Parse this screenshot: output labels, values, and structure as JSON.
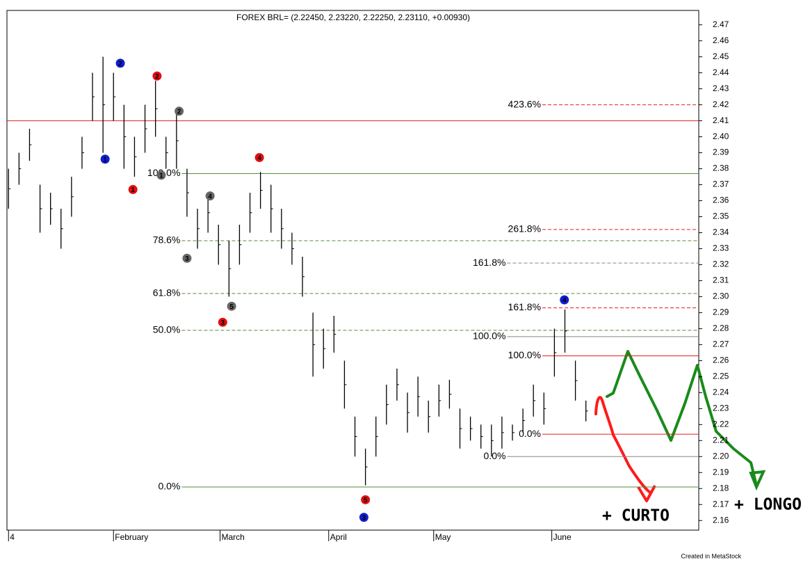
{
  "chart_data": {
    "type": "ohlc",
    "title": "FOREX BRL= (2.22450, 2.23220, 2.22250, 2.23110, +0.00930)",
    "footer": "Created in MetaStock",
    "x": [
      0,
      2,
      4,
      6,
      8,
      10,
      12,
      14,
      16,
      18,
      20,
      22,
      24,
      26,
      28,
      30,
      32,
      34,
      36,
      38,
      40,
      42,
      44,
      46,
      48,
      50,
      52,
      54,
      56,
      58,
      60,
      62,
      64,
      66,
      68,
      70,
      72,
      74,
      76,
      78,
      80,
      82,
      84,
      86,
      88,
      90,
      92,
      94,
      96,
      98,
      100,
      102,
      104,
      106,
      108,
      110
    ],
    "high": [
      2.38,
      2.39,
      2.405,
      2.37,
      2.365,
      2.355,
      2.375,
      2.4,
      2.44,
      2.45,
      2.44,
      2.42,
      2.4,
      2.42,
      2.435,
      2.4,
      2.415,
      2.38,
      2.355,
      2.365,
      2.345,
      2.335,
      2.345,
      2.365,
      2.378,
      2.37,
      2.355,
      2.34,
      2.325,
      2.29,
      2.28,
      2.288,
      2.26,
      2.225,
      2.205,
      2.225,
      2.245,
      2.255,
      2.24,
      2.25,
      2.235,
      2.245,
      2.248,
      2.23,
      2.225,
      2.22,
      2.22,
      2.225,
      2.22,
      2.23,
      2.245,
      2.24,
      2.28,
      2.292,
      2.26,
      2.235
    ],
    "low": [
      2.355,
      2.37,
      2.385,
      2.34,
      2.345,
      2.33,
      2.35,
      2.38,
      2.41,
      2.39,
      2.41,
      2.38,
      2.375,
      2.39,
      2.4,
      2.38,
      2.38,
      2.35,
      2.33,
      2.34,
      2.32,
      2.3,
      2.32,
      2.34,
      2.355,
      2.34,
      2.33,
      2.32,
      2.3,
      2.25,
      2.255,
      2.265,
      2.23,
      2.2,
      2.182,
      2.2,
      2.22,
      2.235,
      2.215,
      2.225,
      2.215,
      2.225,
      2.23,
      2.205,
      2.21,
      2.205,
      2.2,
      2.205,
      2.21,
      2.215,
      2.225,
      2.22,
      2.25,
      2.265,
      2.235,
      2.222
    ],
    "xlim": [
      -0.3,
      131.5
    ],
    "xticks": [
      {
        "value": 0,
        "label": "4"
      },
      {
        "value": 20,
        "label": "February"
      },
      {
        "value": 40.3,
        "label": "March"
      },
      {
        "value": 61,
        "label": "April"
      },
      {
        "value": 81,
        "label": "May"
      },
      {
        "value": 103.5,
        "label": "June"
      }
    ],
    "ylim": [
      2.154,
      2.479
    ],
    "yticks": [
      2.16,
      2.17,
      2.18,
      2.19,
      {
        "value": 2.2,
        "label": "2.20"
      },
      2.21,
      2.22,
      2.23,
      2.24,
      2.25,
      2.26,
      2.27,
      2.28,
      2.29,
      {
        "value": 2.3,
        "label": "2.30"
      },
      2.31,
      2.32,
      2.33,
      2.34,
      2.35,
      2.36,
      2.37,
      2.38,
      2.39,
      {
        "value": 2.4,
        "label": "2.40"
      },
      2.41,
      2.42,
      2.43,
      2.44,
      2.45,
      2.46,
      2.47
    ],
    "levels": [
      {
        "price": 2.41,
        "color": "#e02020",
        "dashed": false,
        "from": -0.3
      },
      {
        "label": "423.6%",
        "price": 2.42,
        "color": "#e02020",
        "dashed": true,
        "from": 101.7
      },
      {
        "label": "261.8%",
        "price": 2.342,
        "color": "#e02020",
        "dashed": true,
        "from": 101.7
      },
      {
        "label": "161.8%",
        "price": 2.293,
        "color": "#e02020",
        "dashed": true,
        "from": 101.7
      },
      {
        "label": "100.0%",
        "price": 2.263,
        "color": "#e02020",
        "dashed": false,
        "from": 101.7
      },
      {
        "label": "0.0%",
        "price": 2.214,
        "color": "#e02020",
        "dashed": false,
        "from": 101.7
      },
      {
        "label": "161.8%",
        "price": 2.321,
        "color": "#888888",
        "dashed": true,
        "from": 95
      },
      {
        "label": "100.0%",
        "price": 2.275,
        "color": "#888888",
        "dashed": false,
        "from": 95
      },
      {
        "label": "0.0%",
        "price": 2.2,
        "color": "#888888",
        "dashed": false,
        "from": 95
      },
      {
        "label": "100.0%",
        "price": 2.377,
        "color": "#5a8a3a",
        "dashed": false,
        "from": 33
      },
      {
        "label": "78.6%",
        "price": 2.335,
        "color": "#5a8a3a",
        "dashed": true,
        "from": 33
      },
      {
        "label": "61.8%",
        "price": 2.302,
        "color": "#5a8a3a",
        "dashed": true,
        "from": 33
      },
      {
        "label": "50.0%",
        "price": 2.279,
        "color": "#5a8a3a",
        "dashed": true,
        "from": 33
      },
      {
        "label": "0.0%",
        "price": 2.181,
        "color": "#5a8a3a",
        "dashed": false,
        "from": 33
      }
    ],
    "waves": [
      {
        "label": "1",
        "color": "#1020d0",
        "x": 18.4,
        "price": 2.386
      },
      {
        "label": "2",
        "color": "#1020d0",
        "x": 21.3,
        "price": 2.446
      },
      {
        "label": "3",
        "color": "#1020d0",
        "x": 67.7,
        "price": 2.162
      },
      {
        "label": "4",
        "color": "#1020d0",
        "x": 105.9,
        "price": 2.298
      },
      {
        "label": "1",
        "color": "#e01010",
        "x": 23.7,
        "price": 2.367
      },
      {
        "label": "2",
        "color": "#e01010",
        "x": 28.3,
        "price": 2.438
      },
      {
        "label": "3",
        "color": "#e01010",
        "x": 40.8,
        "price": 2.284
      },
      {
        "label": "4",
        "color": "#e01010",
        "x": 47.8,
        "price": 2.387
      },
      {
        "label": "5",
        "color": "#e01010",
        "x": 68,
        "price": 2.173
      },
      {
        "label": "1",
        "color": "#666666",
        "x": 29.1,
        "price": 2.376
      },
      {
        "label": "2",
        "color": "#666666",
        "x": 32.5,
        "price": 2.416
      },
      {
        "label": "3",
        "color": "#666666",
        "x": 34,
        "price": 2.324
      },
      {
        "label": "4",
        "color": "#666666",
        "x": 38.4,
        "price": 2.363
      },
      {
        "label": "5",
        "color": "#666666",
        "x": 42.5,
        "price": 2.294
      }
    ],
    "notes": [
      {
        "text": "+ CURTO",
        "color": "#ff1a1a"
      },
      {
        "text": "+ LONGO",
        "color": "#1a8a1a"
      }
    ]
  }
}
